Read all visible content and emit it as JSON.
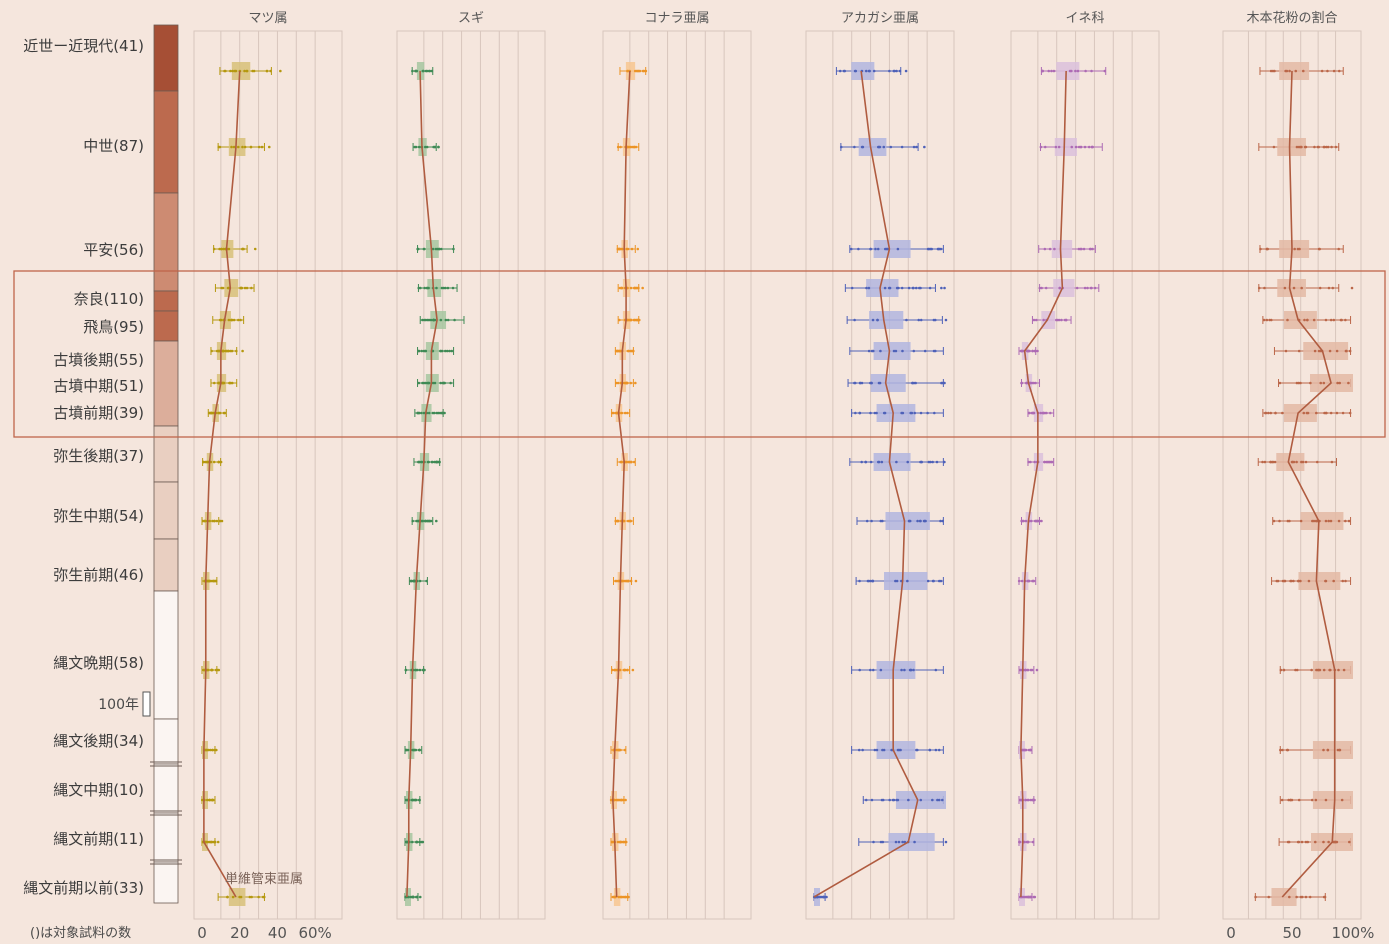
{
  "chart_data": {
    "type": "box",
    "periods": [
      {
        "label": "近世ー近現代(41)",
        "median": {
          "pinus": 20,
          "cryptomeria": 8,
          "konara": 10,
          "akagashi": 25,
          "ine": 25,
          "arboreal": 50
        }
      },
      {
        "label": "中世(87)",
        "median": {
          "pinus": 18,
          "cryptomeria": 9,
          "konara": 8,
          "akagashi": 30,
          "ine": 24,
          "arboreal": 48
        }
      },
      {
        "label": "平安(56)",
        "median": {
          "pinus": 13,
          "cryptomeria": 14,
          "konara": 7,
          "akagashi": 40,
          "ine": 22,
          "arboreal": 50
        }
      },
      {
        "label": "奈良(110)",
        "median": {
          "pinus": 15,
          "cryptomeria": 15,
          "konara": 8,
          "akagashi": 35,
          "ine": 23,
          "arboreal": 48
        }
      },
      {
        "label": "飛鳥(95)",
        "median": {
          "pinus": 12,
          "cryptomeria": 17,
          "konara": 8,
          "akagashi": 37,
          "ine": 15,
          "arboreal": 55
        }
      },
      {
        "label": "古墳後期(55)",
        "median": {
          "pinus": 10,
          "cryptomeria": 14,
          "konara": 6,
          "akagashi": 40,
          "ine": 3,
          "arboreal": 75
        }
      },
      {
        "label": "古墳中期(51)",
        "median": {
          "pinus": 10,
          "cryptomeria": 14,
          "konara": 6,
          "akagashi": 38,
          "ine": 5,
          "arboreal": 82
        }
      },
      {
        "label": "古墳前期(39)",
        "median": {
          "pinus": 7,
          "cryptomeria": 11,
          "konara": 4,
          "akagashi": 42,
          "ine": 10,
          "arboreal": 55
        }
      },
      {
        "label": "弥生後期(37)",
        "median": {
          "pinus": 4,
          "cryptomeria": 10,
          "konara": 7,
          "akagashi": 40,
          "ine": 10,
          "arboreal": 47
        }
      },
      {
        "label": "弥生中期(54)",
        "median": {
          "pinus": 3,
          "cryptomeria": 8,
          "konara": 6,
          "akagashi": 48,
          "ine": 5,
          "arboreal": 72
        }
      },
      {
        "label": "弥生前期(46)",
        "median": {
          "pinus": 2,
          "cryptomeria": 6,
          "konara": 5,
          "akagashi": 47,
          "ine": 3,
          "arboreal": 70
        }
      },
      {
        "label": "縄文晩期(58)",
        "median": {
          "pinus": 2,
          "cryptomeria": 4,
          "konara": 4,
          "akagashi": 42,
          "ine": 2,
          "arboreal": 85
        }
      },
      {
        "label": "縄文後期(34)",
        "median": {
          "pinus": 1,
          "cryptomeria": 3,
          "konara": 2,
          "akagashi": 42,
          "ine": 1,
          "arboreal": 85
        }
      },
      {
        "label": "縄文中期(10)",
        "median": {
          "pinus": 1,
          "cryptomeria": 2,
          "konara": 1,
          "akagashi": 55,
          "ine": 2,
          "arboreal": 85
        }
      },
      {
        "label": "縄文前期(11)",
        "median": {
          "pinus": 1,
          "cryptomeria": 2,
          "konara": 2,
          "akagashi": 50,
          "ine": 2,
          "arboreal": 83
        }
      },
      {
        "label": "縄文前期以前(33)",
        "median": {
          "pinus": 18,
          "cryptomeria": 1,
          "konara": 3,
          "akagashi": 0,
          "ine": 1,
          "arboreal": 42
        }
      }
    ],
    "panels": [
      {
        "key": "pinus",
        "name": "マツ属",
        "xlim": [
          0,
          70
        ],
        "color": "#b5980f",
        "box": "#d7c079",
        "ticks": [
          {
            "v": 0,
            "t": "0"
          },
          {
            "v": 20,
            "t": "20"
          },
          {
            "v": 40,
            "t": "40"
          },
          {
            "v": 60,
            "t": "60%"
          }
        ]
      },
      {
        "key": "cryptomeria",
        "name": "スギ",
        "xlim": [
          0,
          70
        ],
        "color": "#3f8a55",
        "box": "#a6c6a0",
        "ticks": []
      },
      {
        "key": "konara",
        "name": "コナラ亜属",
        "xlim": [
          0,
          70
        ],
        "color": "#ec9426",
        "box": "#f7c590",
        "ticks": []
      },
      {
        "key": "akagashi",
        "name": "アカガシ亜属",
        "xlim": [
          0,
          70
        ],
        "color": "#4e61b8",
        "box": "#b1b5df",
        "ticks": []
      },
      {
        "key": "ine",
        "name": "イネ科",
        "xlim": [
          0,
          70
        ],
        "color": "#ad6bb4",
        "box": "#dbc0dc",
        "ticks": []
      },
      {
        "key": "arboreal",
        "name": "木本花粉の割合",
        "xlim": [
          0,
          100
        ],
        "color": "#bb6749",
        "box": "#e3b9a5",
        "ticks": [
          {
            "v": 0,
            "t": "0"
          },
          {
            "v": 50,
            "t": "50"
          },
          {
            "v": 100,
            "t": "100%"
          }
        ]
      }
    ],
    "annotations": {
      "subgenus_label": "単維管束亜属",
      "century_scale": "100年",
      "footnote": "()は対象試料の数"
    },
    "colors": {
      "background": "#f5e6dd",
      "median_line": "#b05c40",
      "grid": "#d8c6bd",
      "highlight_frame": "#c0654a",
      "chrono_band": [
        "#a64f35",
        "#bc6a4e",
        "#cd8b72",
        "#dcae9b",
        "#e9cfc1",
        "#fbf5f2"
      ]
    }
  }
}
